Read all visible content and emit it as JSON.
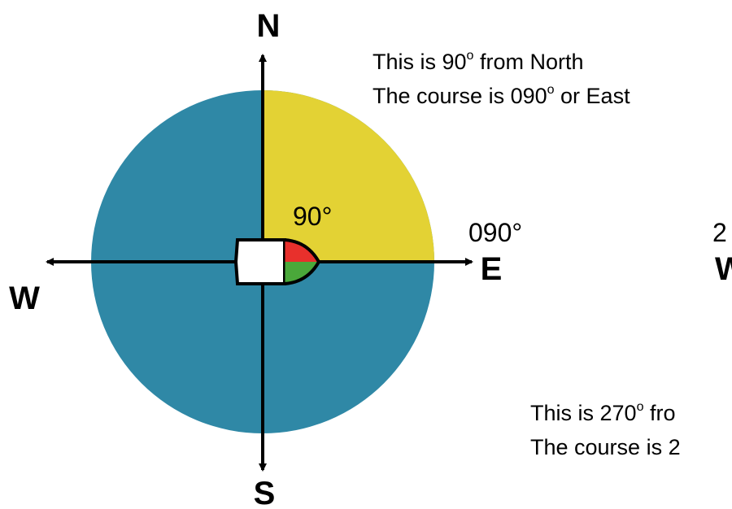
{
  "compass": {
    "north": "N",
    "south": "S",
    "east": "E",
    "west": "W",
    "angle_label": "90°"
  },
  "left_caption": {
    "line1": {
      "before": "This is 90",
      "sup": "o",
      "after": " from North"
    },
    "line2": {
      "before": "The course is 090",
      "sup": "o",
      "after": " or East"
    }
  },
  "course_label": "090°",
  "right_partial": {
    "course_label": "2",
    "direction": "W",
    "line1": {
      "before": "This is 270",
      "sup": "o",
      "after": " fro"
    },
    "line2": "The course is 2"
  }
}
